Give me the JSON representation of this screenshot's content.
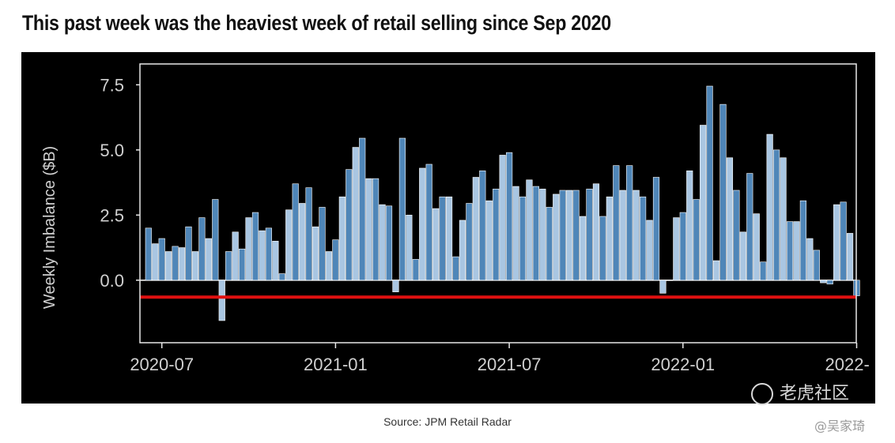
{
  "headline": "This past week was the heaviest week of retail selling since Sep 2020",
  "source": "Source: JPM Retail Radar",
  "watermark": {
    "badge": "老虎社区",
    "author": "@吴家琦"
  },
  "colors": {
    "bar": "#4f86b8",
    "bar_light": "#a9c6e2",
    "zero_line": "#ffffff",
    "reference_line": "#e01010",
    "background": "#000000"
  },
  "chart_data": {
    "type": "bar",
    "title": "",
    "xlabel": "",
    "ylabel": "Weekly Imbalance ($B)",
    "ylim": [
      -2.4,
      8.3
    ],
    "yticks": [
      0.0,
      2.5,
      5.0,
      7.5
    ],
    "ytick_labels": [
      "0.0",
      "2.5",
      "5.0",
      "7.5"
    ],
    "xtick_labels": [
      "2020-07",
      "2021-01",
      "2021-07",
      "2022-01",
      "2022-"
    ],
    "xtick_positions": [
      2,
      28,
      54,
      80,
      106
    ],
    "reference_line": -0.65,
    "values": [
      2.0,
      1.4,
      1.6,
      1.1,
      1.3,
      1.25,
      2.05,
      1.1,
      2.4,
      1.6,
      3.1,
      -1.55,
      1.1,
      1.85,
      1.2,
      2.4,
      2.6,
      1.9,
      2.0,
      1.5,
      0.25,
      2.7,
      3.7,
      2.95,
      3.55,
      2.05,
      2.8,
      1.1,
      1.55,
      3.2,
      4.25,
      5.1,
      5.45,
      3.9,
      3.9,
      2.9,
      2.85,
      -0.45,
      5.45,
      2.5,
      0.8,
      4.3,
      4.45,
      2.75,
      3.2,
      3.2,
      0.9,
      2.3,
      2.95,
      3.95,
      4.2,
      3.05,
      3.5,
      4.8,
      4.9,
      3.6,
      3.2,
      3.85,
      3.6,
      3.5,
      2.8,
      3.3,
      3.45,
      3.45,
      3.45,
      2.45,
      3.5,
      3.7,
      2.45,
      3.2,
      4.4,
      3.45,
      4.4,
      3.45,
      3.2,
      2.3,
      3.95,
      -0.5,
      0.0,
      2.4,
      2.6,
      4.2,
      3.1,
      5.95,
      7.45,
      0.75,
      6.75,
      4.7,
      3.45,
      1.85,
      4.1,
      2.55,
      0.7,
      5.6,
      5.0,
      4.7,
      2.25,
      2.25,
      3.05,
      1.6,
      1.15,
      -0.1,
      -0.15,
      2.9,
      3.0,
      1.8,
      -0.6
    ]
  }
}
